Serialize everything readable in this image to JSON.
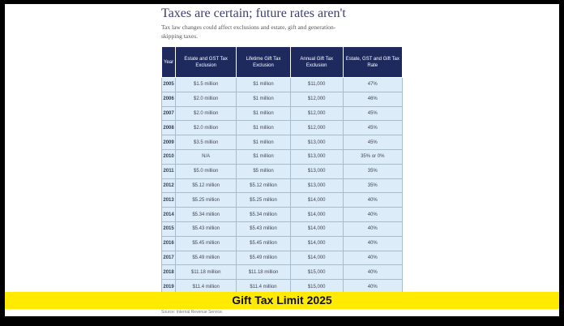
{
  "title": "Taxes are certain; future rates aren't",
  "subtitle": "Tax law changes could affect exclusions and estate, gift and generation-skipping taxes.",
  "table": {
    "headers": [
      "Year",
      "Estate and GST Tax Exclusion",
      "Lifetime Gift Tax Exclusion",
      "Annual Gift Tax Exclusion",
      "Estate, GST and Gift Tax Rate"
    ],
    "rows": [
      [
        "2005",
        "$1.5 million",
        "$1 million",
        "$11,000",
        "47%"
      ],
      [
        "2006",
        "$2.0 million",
        "$1 million",
        "$12,000",
        "46%"
      ],
      [
        "2007",
        "$2.0 million",
        "$1 million",
        "$12,000",
        "45%"
      ],
      [
        "2008",
        "$2.0 million",
        "$1 million",
        "$12,000",
        "45%"
      ],
      [
        "2009",
        "$3.5 million",
        "$1 million",
        "$13,000",
        "45%"
      ],
      [
        "2010",
        "N/A",
        "$1 million",
        "$13,000",
        "35% or 0%"
      ],
      [
        "2011",
        "$5.0 million",
        "$5 million",
        "$13,000",
        "35%"
      ],
      [
        "2012",
        "$5.12 million",
        "$5.12 million",
        "$13,000",
        "35%"
      ],
      [
        "2013",
        "$5.25 million",
        "$5.25 million",
        "$14,000",
        "40%"
      ],
      [
        "2014",
        "$5.34 million",
        "$5.34 million",
        "$14,000",
        "40%"
      ],
      [
        "2015",
        "$5.43 million",
        "$5.43 million",
        "$14,000",
        "40%"
      ],
      [
        "2016",
        "$5.45 million",
        "$5.45 million",
        "$14,000",
        "40%"
      ],
      [
        "2017",
        "$5.49 million",
        "$5.49 million",
        "$14,000",
        "40%"
      ],
      [
        "2018",
        "$11.18 million",
        "$11.18 million",
        "$15,000",
        "40%"
      ],
      [
        "2019",
        "$11.4 million",
        "$11.4 million",
        "$15,000",
        "40%"
      ]
    ]
  },
  "banner": "Gift Tax Limit 2025",
  "source": "Source: Internal Revenue Service.",
  "colors": {
    "header": "#1e2a5e",
    "cell": "#dcedf9",
    "banner": "#ffea00"
  }
}
